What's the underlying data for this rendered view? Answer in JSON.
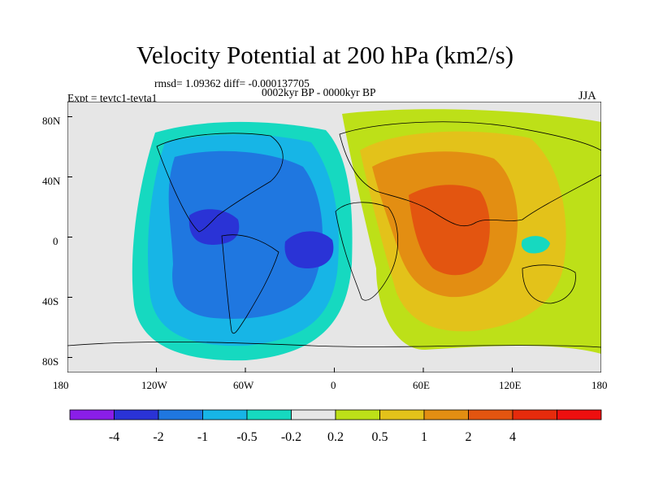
{
  "title": "Velocity Potential at 200 hPa (km2/s)",
  "stats": "rmsd= 1.09362 diff= -0.000137705",
  "period": "0002kyr BP - 0000kyr BP",
  "experiment": "Expt = tevtc1-tevta1",
  "season": "JJA",
  "axes": {
    "x_ticks": [
      "180",
      "120W",
      "60W",
      "0",
      "60E",
      "120E",
      "180"
    ],
    "y_ticks": [
      "80N",
      "40N",
      "0",
      "40S",
      "80S"
    ]
  },
  "colorbar": {
    "colors": [
      "#8a1ee8",
      "#2a33d6",
      "#1f77e0",
      "#17b5e6",
      "#16d9c0",
      "#e6e6e6",
      "#bde018",
      "#e3c21a",
      "#e38e12",
      "#e35510",
      "#e62b0c",
      "#ee0f0f"
    ],
    "labels": [
      "-4",
      "-2",
      "-1",
      "-0.5",
      "-0.2",
      "0.2",
      "0.5",
      "1",
      "2",
      "4"
    ]
  },
  "chart_data": {
    "type": "contour-map",
    "title": "Velocity Potential at 200 hPa (km2/s)",
    "projection": "cylindrical equidistant",
    "lon_range": [
      -180,
      180
    ],
    "lat_range": [
      -90,
      90
    ],
    "levels": [
      -4,
      -2,
      -1,
      -0.5,
      -0.2,
      0.2,
      0.5,
      1,
      2,
      4
    ],
    "features": [
      {
        "name": "negative center (eastern Pacific / Central America)",
        "lon": -75,
        "lat": 5,
        "level_band": "-4 to -2"
      },
      {
        "name": "negative center (tropical South Atlantic)",
        "lon": -18,
        "lat": -5,
        "level_band": "-4 to -2"
      },
      {
        "name": "positive center (Arabian Sea / India)",
        "lon": 75,
        "lat": 5,
        "level_band": "2 to 4"
      },
      {
        "name": "negative pocket (Indonesia / New Guinea)",
        "lon": 140,
        "lat": -3,
        "level_band": "-0.5 to -0.2"
      }
    ]
  }
}
